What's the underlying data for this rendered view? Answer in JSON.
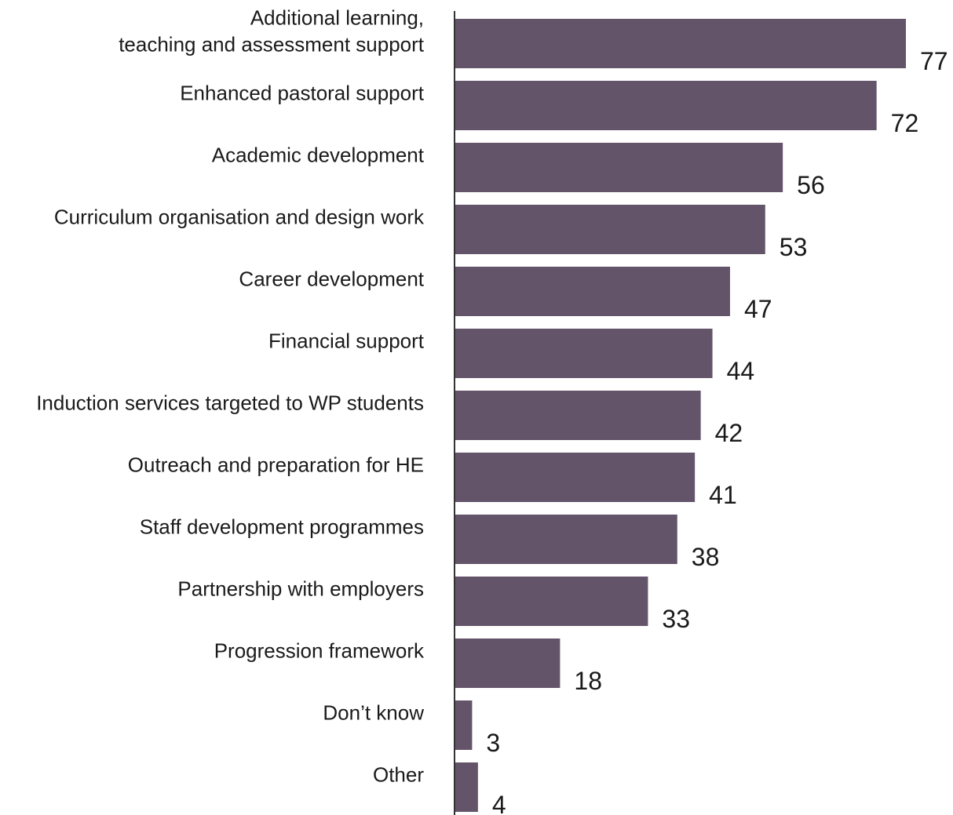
{
  "chart_data": {
    "type": "bar",
    "orientation": "horizontal",
    "categories": [
      "Additional learning,\nteaching and assessment support",
      "Enhanced pastoral support",
      "Academic development",
      "Curriculum organisation and design work",
      "Career development",
      "Financial support",
      "Induction services targeted to WP students",
      "Outreach and preparation for HE",
      "Staff development programmes",
      "Partnership with employers",
      "Progression framework",
      "Don’t know",
      "Other"
    ],
    "values": [
      77,
      72,
      56,
      53,
      47,
      44,
      42,
      41,
      38,
      33,
      18,
      3,
      4
    ],
    "value_labels": [
      "77",
      "72",
      "56",
      "53",
      "47",
      "44",
      "42",
      "41",
      "38",
      "33",
      "18",
      "3",
      "4"
    ],
    "title": "",
    "xlabel": "",
    "ylabel": "",
    "xlim": [
      0,
      77
    ],
    "grid": false,
    "legend": "none",
    "bar_color": "#635469",
    "axis_color": "#333333"
  }
}
